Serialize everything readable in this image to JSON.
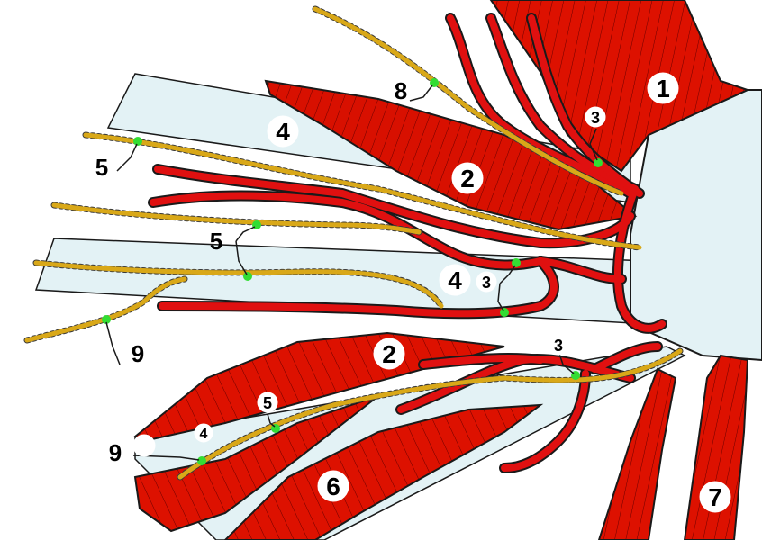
{
  "colors": {
    "background": "#ffffff",
    "fascia": "#e3f2f5",
    "muscle": "#dd1100",
    "muscle_dark": "#7a0000",
    "vessel": "#e01010",
    "nerve": "#d9a818",
    "marker": "#33dd33",
    "outline": "#1a1a1a"
  },
  "labels": {
    "l1": "1",
    "l2a": "2",
    "l2b": "2",
    "l3a": "3",
    "l3b": "3",
    "l3c": "3",
    "l4a": "4",
    "l4b": "4",
    "l4c": "4",
    "l5a": "5",
    "l5b": "5",
    "l5c": "5",
    "l6": "6",
    "l7": "7",
    "l8": "8",
    "l9a": "9",
    "l9b": "9"
  }
}
